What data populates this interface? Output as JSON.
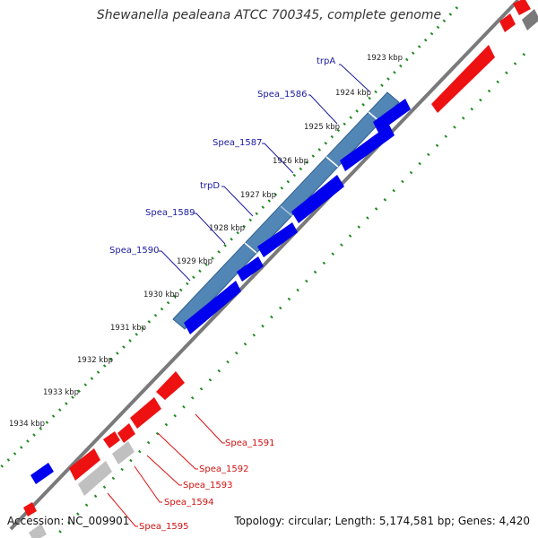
{
  "title": "Shewanella pealeana ATCC 700345, complete genome",
  "footer": {
    "accession": "Accession: NC_009901",
    "summary": "Topology: circular; Length: 5,174,581 bp; Genes: 4,420"
  },
  "ticks": [
    "1923 kbp",
    "1924 kbp",
    "1925 kbp",
    "1926 kbp",
    "1927 kbp",
    "1928 kbp",
    "1929 kbp",
    "1930 kbp",
    "1931 kbp",
    "1932 kbp",
    "1933 kbp",
    "1934 kbp"
  ],
  "gene_labels_plus": [
    "trpA",
    "Spea_1586",
    "Spea_1587",
    "trpD",
    "Spea_1589",
    "Spea_1590"
  ],
  "gene_labels_minus": [
    "Spea_1591",
    "Spea_1592",
    "Spea_1593",
    "Spea_1594",
    "Spea_1595"
  ],
  "colors": {
    "plus_strand": "#0000ee",
    "operon": "#4f86b8",
    "minus_strand": "#ee1111",
    "rna_gray": "#bdbdbd",
    "backbone": "#777777",
    "gc_dots": "#1f8a1f"
  }
}
